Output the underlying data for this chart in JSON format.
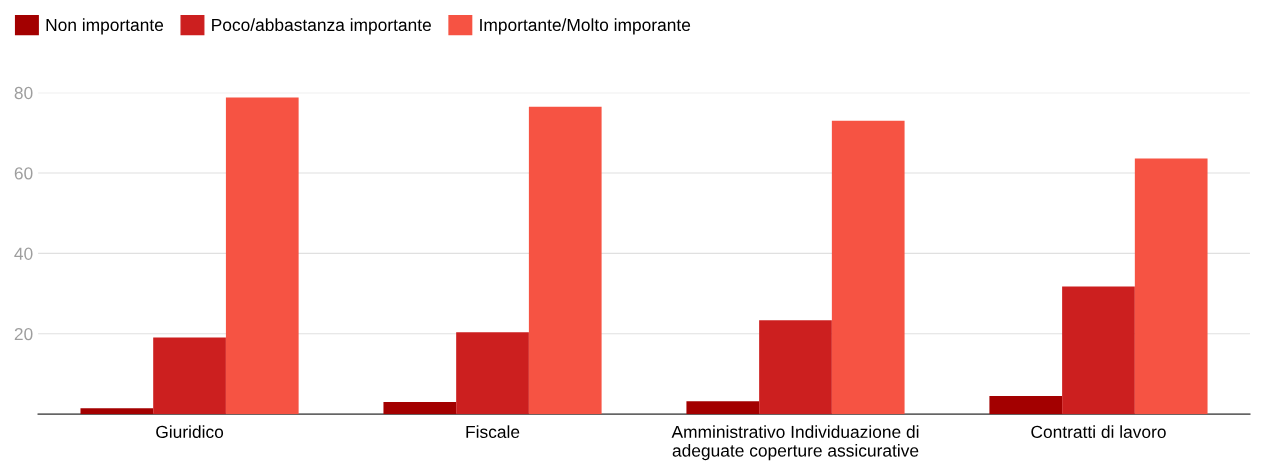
{
  "chart_data": {
    "type": "bar",
    "categories": [
      "Giuridico",
      "Fiscale",
      "Amministrativo Individuazione di adeguate coperture assicurative",
      "Contratti di lavoro"
    ],
    "series": [
      {
        "name": "Non importante",
        "color": "#a30000",
        "values": [
          1.5,
          3.0,
          3.2,
          4.5
        ]
      },
      {
        "name": "Poco/abbastanza importante",
        "color": "#cc1f1f",
        "values": [
          19.1,
          20.4,
          23.4,
          31.8
        ]
      },
      {
        "name": "Importante/Molto imporante",
        "color": "#f65343",
        "values": [
          78.8,
          76.5,
          73.0,
          63.6
        ]
      }
    ],
    "ylim": [
      0,
      80
    ],
    "yticks": [
      {
        "value": 0,
        "label": null
      },
      20,
      40,
      60,
      80
    ],
    "grid": "y",
    "legend": "top left"
  }
}
